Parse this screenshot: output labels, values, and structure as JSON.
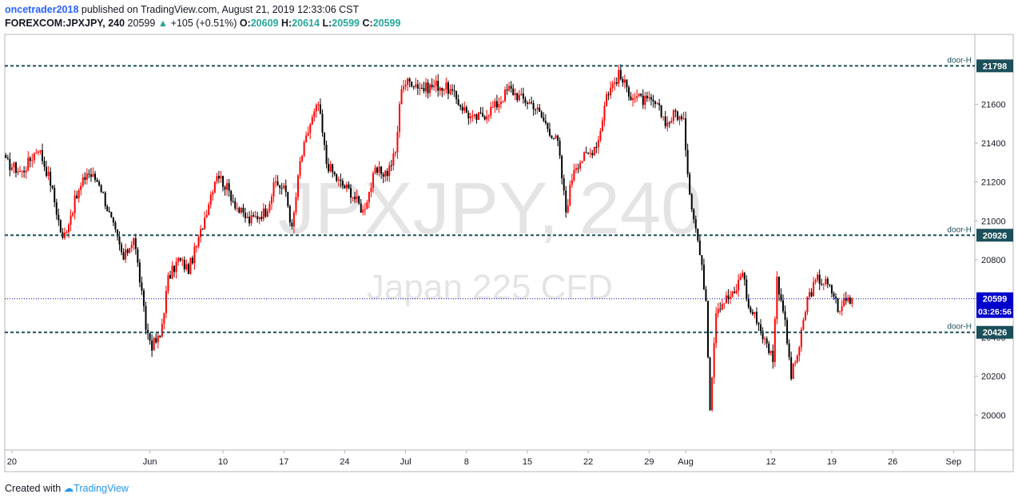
{
  "header": {
    "author": "oncetrader2018",
    "published_text": "published on TradingView.com, August 21, 2019 12:33:06 CST",
    "symbol": "FOREXCOM:JPXJPY, 240",
    "last_price": "20599",
    "change": "+105 (+0.51%)",
    "open_label": "O:",
    "open": "20609",
    "high_label": "H:",
    "high": "20614",
    "low_label": "L:",
    "low": "20599",
    "close_label": "C:",
    "close": "20599"
  },
  "footer": {
    "created_with": "Created with",
    "brand": "TradingView"
  },
  "colors": {
    "bull": "#ff0000",
    "bear": "#000000",
    "level": "#1b4f5a",
    "price_line": "#0000cc",
    "watermark": "#cfcfcf"
  },
  "chart_data": {
    "type": "candlestick",
    "watermark_symbol": "JPXJPY, 240",
    "watermark_name": "Japan 225 CFD",
    "y_ticks": [
      20000,
      20200,
      20400,
      20600,
      20800,
      21000,
      21200,
      21400,
      21600
    ],
    "ylim": [
      19820,
      21960
    ],
    "x_ticks": [
      {
        "label": "20",
        "i": 3
      },
      {
        "label": "Jun",
        "i": 71
      },
      {
        "label": "10",
        "i": 107
      },
      {
        "label": "17",
        "i": 137
      },
      {
        "label": "24",
        "i": 167
      },
      {
        "label": "Jul",
        "i": 197
      },
      {
        "label": "8",
        "i": 227
      },
      {
        "label": "15",
        "i": 257
      },
      {
        "label": "22",
        "i": 287
      },
      {
        "label": "29",
        "i": 317
      },
      {
        "label": "Aug",
        "i": 335
      },
      {
        "label": "12",
        "i": 377
      },
      {
        "label": "19",
        "i": 407
      },
      {
        "label": "26",
        "i": 437
      },
      {
        "label": "Sep",
        "i": 467
      }
    ],
    "bar_count": 418,
    "total_slots": 478,
    "levels": [
      {
        "value": 21798,
        "label": "door-H"
      },
      {
        "value": 20926,
        "label": "door-H"
      },
      {
        "value": 20426,
        "label": "door-H"
      }
    ],
    "current_price": 20599,
    "countdown": "03:26:56",
    "anchors": [
      [
        0,
        21300
      ],
      [
        8,
        21250
      ],
      [
        16,
        21380
      ],
      [
        22,
        21200
      ],
      [
        28,
        20900
      ],
      [
        34,
        21100
      ],
      [
        40,
        21250
      ],
      [
        46,
        21200
      ],
      [
        52,
        21000
      ],
      [
        58,
        20800
      ],
      [
        63,
        20920
      ],
      [
        66,
        20700
      ],
      [
        69,
        20450
      ],
      [
        72,
        20360
      ],
      [
        76,
        20400
      ],
      [
        80,
        20700
      ],
      [
        85,
        20800
      ],
      [
        90,
        20750
      ],
      [
        95,
        20900
      ],
      [
        100,
        21100
      ],
      [
        104,
        21250
      ],
      [
        110,
        21150
      ],
      [
        115,
        21050
      ],
      [
        120,
        21000
      ],
      [
        128,
        21050
      ],
      [
        133,
        21200
      ],
      [
        138,
        21150
      ],
      [
        141,
        20950
      ],
      [
        145,
        21300
      ],
      [
        150,
        21500
      ],
      [
        154,
        21600
      ],
      [
        158,
        21300
      ],
      [
        164,
        21200
      ],
      [
        170,
        21150
      ],
      [
        176,
        21050
      ],
      [
        182,
        21250
      ],
      [
        188,
        21250
      ],
      [
        192,
        21350
      ],
      [
        195,
        21700
      ],
      [
        200,
        21720
      ],
      [
        206,
        21680
      ],
      [
        212,
        21700
      ],
      [
        218,
        21680
      ],
      [
        224,
        21600
      ],
      [
        230,
        21520
      ],
      [
        236,
        21550
      ],
      [
        242,
        21600
      ],
      [
        248,
        21680
      ],
      [
        254,
        21630
      ],
      [
        260,
        21600
      ],
      [
        266,
        21500
      ],
      [
        272,
        21400
      ],
      [
        276,
        21050
      ],
      [
        280,
        21280
      ],
      [
        284,
        21320
      ],
      [
        288,
        21350
      ],
      [
        292,
        21420
      ],
      [
        296,
        21650
      ],
      [
        302,
        21750
      ],
      [
        308,
        21650
      ],
      [
        314,
        21620
      ],
      [
        320,
        21600
      ],
      [
        326,
        21500
      ],
      [
        330,
        21560
      ],
      [
        334,
        21500
      ],
      [
        337,
        21150
      ],
      [
        341,
        20900
      ],
      [
        345,
        20600
      ],
      [
        347,
        20050
      ],
      [
        350,
        20550
      ],
      [
        355,
        20600
      ],
      [
        359,
        20620
      ],
      [
        363,
        20750
      ],
      [
        366,
        20550
      ],
      [
        370,
        20500
      ],
      [
        374,
        20380
      ],
      [
        378,
        20300
      ],
      [
        380,
        20700
      ],
      [
        383,
        20550
      ],
      [
        387,
        20200
      ],
      [
        391,
        20350
      ],
      [
        395,
        20600
      ],
      [
        400,
        20700
      ],
      [
        404,
        20680
      ],
      [
        408,
        20620
      ],
      [
        411,
        20520
      ],
      [
        413,
        20600
      ]
    ]
  }
}
